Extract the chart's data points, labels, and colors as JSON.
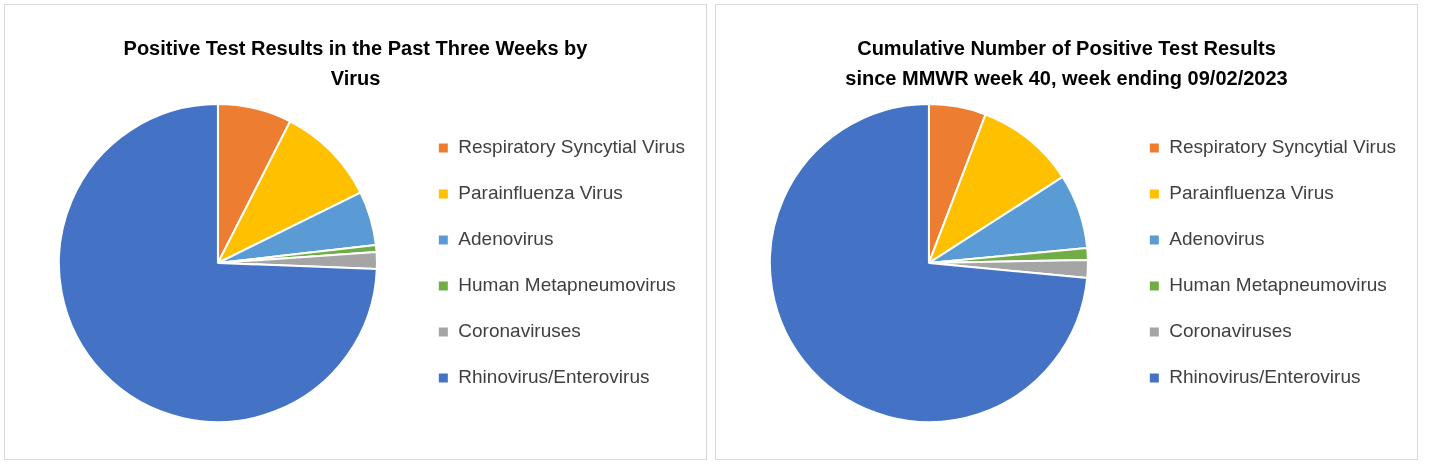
{
  "chart_data": [
    {
      "type": "pie",
      "title": "Positive Test Results in the Past Three Weeks by Virus",
      "categories": [
        "Respiratory Syncytial Virus",
        "Parainfluenza Virus",
        "Adenovirus",
        "Human Metapneumovirus",
        "Coronaviruses",
        "Rhinovirus/Enterovirus"
      ],
      "values": [
        7.5,
        10.2,
        5.5,
        0.7,
        1.7,
        74.4
      ],
      "colors": [
        "#ed7d31",
        "#ffc000",
        "#5b9bd5",
        "#70ad47",
        "#a5a5a5",
        "#4472c4"
      ],
      "legend": "right"
    },
    {
      "type": "pie",
      "title": "Cumulative Number of Positive Test Results since MMWR week 40, week ending 09/02/2023",
      "categories": [
        "Respiratory Syncytial Virus",
        "Parainfluenza Virus",
        "Adenovirus",
        "Human Metapneumovirus",
        "Coronaviruses",
        "Rhinovirus/Enterovirus"
      ],
      "values": [
        5.8,
        10.1,
        7.6,
        1.2,
        1.8,
        73.5
      ],
      "colors": [
        "#ed7d31",
        "#ffc000",
        "#5b9bd5",
        "#70ad47",
        "#a5a5a5",
        "#4472c4"
      ],
      "legend": "right"
    }
  ]
}
